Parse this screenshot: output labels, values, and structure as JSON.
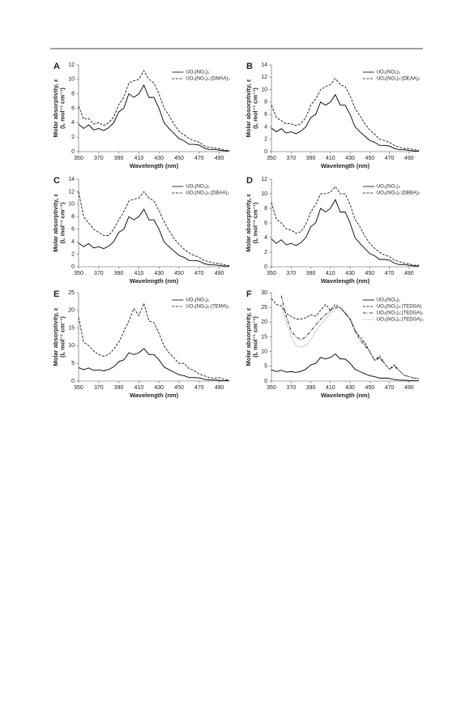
{
  "chart_data": [
    {
      "type": "line",
      "panel": "A",
      "xlabel": "Wavelength (nm)",
      "ylabel": [
        "Molar absorptivity, ε",
        "(L mol⁻¹ cm⁻¹)"
      ],
      "x": [
        350,
        355,
        360,
        365,
        370,
        375,
        380,
        385,
        390,
        395,
        400,
        405,
        410,
        415,
        420,
        425,
        430,
        435,
        440,
        445,
        450,
        455,
        460,
        465,
        470,
        475,
        480,
        485,
        490,
        495,
        500
      ],
      "xlim": [
        350,
        500
      ],
      "xticks": [
        350,
        370,
        390,
        410,
        430,
        450,
        470,
        490
      ],
      "ylim": [
        0,
        12
      ],
      "yticks": [
        0,
        2,
        4,
        6,
        8,
        10,
        12
      ],
      "grid": false,
      "legend": "upper right",
      "series": [
        {
          "name": "UO₂(NO₃)₂",
          "color": "#000000",
          "linestyle": "solid",
          "values": [
            3.8,
            3.2,
            3.7,
            3.0,
            3.2,
            2.9,
            3.3,
            4.0,
            5.5,
            6.0,
            8.0,
            7.5,
            8.0,
            9.2,
            7.5,
            7.5,
            6.0,
            4.0,
            3.2,
            2.5,
            1.8,
            1.5,
            1.0,
            1.0,
            0.9,
            0.5,
            0.3,
            0.3,
            0.2,
            0.1,
            0.1
          ]
        },
        {
          "name": "UO₂(NO₃)₂:(DMAA)₂",
          "color": "#000000",
          "linestyle": "dashed",
          "values": [
            6.3,
            4.5,
            4.6,
            3.8,
            4.0,
            3.6,
            4.0,
            4.8,
            6.5,
            7.5,
            9.5,
            9.8,
            10.0,
            11.2,
            10.0,
            9.5,
            8.0,
            6.0,
            5.0,
            3.8,
            2.8,
            2.3,
            1.8,
            1.5,
            1.3,
            0.8,
            0.6,
            0.5,
            0.4,
            0.2,
            0.2
          ]
        }
      ]
    },
    {
      "type": "line",
      "panel": "B",
      "xlabel": "Wavelength (nm)",
      "ylabel": [
        "Molar absorptivity, ε",
        "(L mol⁻¹ cm⁻¹)"
      ],
      "x": [
        350,
        355,
        360,
        365,
        370,
        375,
        380,
        385,
        390,
        395,
        400,
        405,
        410,
        415,
        420,
        425,
        430,
        435,
        440,
        445,
        450,
        455,
        460,
        465,
        470,
        475,
        480,
        485,
        490,
        495,
        500
      ],
      "xlim": [
        350,
        500
      ],
      "xticks": [
        350,
        370,
        390,
        410,
        430,
        450,
        470,
        490
      ],
      "ylim": [
        0,
        14
      ],
      "yticks": [
        0,
        2,
        4,
        6,
        8,
        10,
        12,
        14
      ],
      "grid": false,
      "legend": "upper right",
      "series": [
        {
          "name": "UO₂(NO₃)₂",
          "color": "#000000",
          "linestyle": "solid",
          "values": [
            3.8,
            3.2,
            3.7,
            3.0,
            3.2,
            2.9,
            3.3,
            4.0,
            5.5,
            6.0,
            8.0,
            7.5,
            8.0,
            9.2,
            7.5,
            7.5,
            6.0,
            4.0,
            3.2,
            2.5,
            1.8,
            1.5,
            1.0,
            1.0,
            0.9,
            0.5,
            0.3,
            0.3,
            0.2,
            0.1,
            0.1
          ]
        },
        {
          "name": "UO₂(NO₃)₂:(DEAA)₂",
          "color": "#000000",
          "linestyle": "dashed",
          "values": [
            7.5,
            5.5,
            5.0,
            4.5,
            4.5,
            4.2,
            4.5,
            5.5,
            7.5,
            8.5,
            10.0,
            10.5,
            10.8,
            11.8,
            10.8,
            10.5,
            9.0,
            7.0,
            5.8,
            4.5,
            3.5,
            2.8,
            2.0,
            1.8,
            1.5,
            1.0,
            0.7,
            0.5,
            0.5,
            0.3,
            0.2
          ]
        }
      ]
    },
    {
      "type": "line",
      "panel": "C",
      "xlabel": "Wavelength (nm)",
      "ylabel": [
        "Molar absorptivity, ε",
        "(L mol⁻¹ cm⁻¹)"
      ],
      "x": [
        350,
        355,
        360,
        365,
        370,
        375,
        380,
        385,
        390,
        395,
        400,
        405,
        410,
        415,
        420,
        425,
        430,
        435,
        440,
        445,
        450,
        455,
        460,
        465,
        470,
        475,
        480,
        485,
        490,
        495,
        500
      ],
      "xlim": [
        350,
        500
      ],
      "xticks": [
        350,
        370,
        390,
        410,
        430,
        450,
        470,
        490
      ],
      "ylim": [
        0,
        14
      ],
      "yticks": [
        0,
        2,
        4,
        6,
        8,
        10,
        12,
        14
      ],
      "grid": false,
      "legend": "upper right",
      "series": [
        {
          "name": "UO₂(NO₃)₂",
          "color": "#000000",
          "linestyle": "solid",
          "values": [
            3.8,
            3.2,
            3.7,
            3.0,
            3.2,
            2.9,
            3.3,
            4.0,
            5.5,
            6.0,
            8.0,
            7.5,
            8.0,
            9.2,
            7.5,
            7.5,
            6.0,
            4.0,
            3.2,
            2.5,
            1.8,
            1.5,
            1.0,
            1.0,
            0.9,
            0.5,
            0.3,
            0.3,
            0.2,
            0.1,
            0.1
          ]
        },
        {
          "name": "UO₂(NO₃)₂:(DBAA)₂",
          "color": "#000000",
          "linestyle": "dashed",
          "values": [
            12.0,
            8.0,
            7.0,
            6.0,
            5.5,
            5.0,
            5.0,
            6.0,
            7.5,
            8.8,
            10.5,
            10.8,
            11.0,
            12.0,
            11.0,
            10.5,
            9.0,
            7.2,
            5.8,
            4.5,
            3.6,
            2.8,
            2.2,
            1.8,
            1.5,
            1.0,
            0.8,
            0.6,
            0.5,
            0.3,
            0.2
          ]
        }
      ]
    },
    {
      "type": "line",
      "panel": "D",
      "xlabel": "Wavelength (nm)",
      "ylabel": [
        "Molar absorptivity, ε",
        "(L mol⁻¹ cm⁻¹)"
      ],
      "x": [
        350,
        355,
        360,
        365,
        370,
        375,
        380,
        385,
        390,
        395,
        400,
        405,
        410,
        415,
        420,
        425,
        430,
        435,
        440,
        445,
        450,
        455,
        460,
        465,
        470,
        475,
        480,
        485,
        490,
        495,
        500
      ],
      "xlim": [
        350,
        500
      ],
      "xticks": [
        350,
        370,
        390,
        410,
        430,
        450,
        470,
        490
      ],
      "ylim": [
        0,
        12
      ],
      "yticks": [
        0,
        2,
        4,
        6,
        8,
        10,
        12
      ],
      "grid": false,
      "legend": "upper right",
      "series": [
        {
          "name": "UO₂(NO₃)₂",
          "color": "#000000",
          "linestyle": "solid",
          "values": [
            3.8,
            3.2,
            3.7,
            3.0,
            3.2,
            2.9,
            3.3,
            4.0,
            5.5,
            6.0,
            8.0,
            7.5,
            8.0,
            9.2,
            7.5,
            7.5,
            6.0,
            4.0,
            3.2,
            2.5,
            1.8,
            1.5,
            1.0,
            1.0,
            0.9,
            0.5,
            0.3,
            0.3,
            0.2,
            0.1,
            0.1
          ]
        },
        {
          "name": "UO₂(NO₃)₂:(DBBA)₂",
          "color": "#000000",
          "linestyle": "dashed",
          "values": [
            8.8,
            6.5,
            6.0,
            5.2,
            5.0,
            4.6,
            4.8,
            5.8,
            7.5,
            8.5,
            10.0,
            10.0,
            10.2,
            11.0,
            10.0,
            10.0,
            8.5,
            6.5,
            5.5,
            4.2,
            3.2,
            2.5,
            2.0,
            1.6,
            1.4,
            0.9,
            0.7,
            0.5,
            0.4,
            0.2,
            0.2
          ]
        }
      ]
    },
    {
      "type": "line",
      "panel": "E",
      "xlabel": "Wavelength (nm)",
      "ylabel": [
        "Molar absorptivity, ε",
        "(L mol⁻¹ cm⁻¹)"
      ],
      "x": [
        350,
        355,
        360,
        365,
        370,
        375,
        380,
        385,
        390,
        395,
        400,
        405,
        410,
        415,
        420,
        425,
        430,
        435,
        440,
        445,
        450,
        455,
        460,
        465,
        470,
        475,
        480,
        485,
        490,
        495,
        500
      ],
      "xlim": [
        350,
        500
      ],
      "xticks": [
        350,
        370,
        390,
        410,
        430,
        450,
        470,
        490
      ],
      "ylim": [
        0,
        25
      ],
      "yticks": [
        0,
        5,
        10,
        15,
        20,
        25
      ],
      "grid": false,
      "legend": "upper right",
      "series": [
        {
          "name": "UO₂(NO₃)₂",
          "color": "#000000",
          "linestyle": "solid",
          "values": [
            3.8,
            3.2,
            3.7,
            3.0,
            3.2,
            2.9,
            3.3,
            4.0,
            5.5,
            6.0,
            8.0,
            7.5,
            8.0,
            9.2,
            7.5,
            7.5,
            6.0,
            4.0,
            3.2,
            2.5,
            1.8,
            1.5,
            1.0,
            1.0,
            0.9,
            0.5,
            0.3,
            0.3,
            0.2,
            0.1,
            0.1
          ]
        },
        {
          "name": "UO₂(NO₃)₂:(TEMA)₂",
          "color": "#000000",
          "linestyle": "dashed",
          "values": [
            18,
            11,
            10,
            8.5,
            7.5,
            7.0,
            7.5,
            9.0,
            11.0,
            14.0,
            17.0,
            20.5,
            18.5,
            22.0,
            17.0,
            16.5,
            13.5,
            10.0,
            8.0,
            6.5,
            5.0,
            5.0,
            3.5,
            3.0,
            2.0,
            1.5,
            1.0,
            0.8,
            1.0,
            0.5,
            0.3
          ]
        }
      ]
    },
    {
      "type": "line",
      "panel": "F",
      "xlabel": "Wavelength (nm)",
      "ylabel": [
        "Molar absorptivity, ε",
        "(L mol⁻¹ cm⁻¹)"
      ],
      "x": [
        350,
        355,
        360,
        365,
        370,
        375,
        380,
        385,
        390,
        395,
        400,
        405,
        410,
        415,
        420,
        425,
        430,
        435,
        440,
        445,
        450,
        455,
        460,
        465,
        470,
        475,
        480,
        485,
        490,
        495,
        500
      ],
      "xlim": [
        350,
        500
      ],
      "xticks": [
        350,
        370,
        390,
        410,
        430,
        450,
        470,
        490
      ],
      "ylim": [
        0,
        30
      ],
      "yticks": [
        0,
        5,
        10,
        15,
        20,
        25,
        30
      ],
      "grid": false,
      "legend": "upper right",
      "series": [
        {
          "name": "UO₂(NO₃)₂",
          "color": "#000000",
          "linestyle": "solid",
          "values": [
            3.8,
            3.2,
            3.7,
            3.0,
            3.2,
            2.9,
            3.3,
            4.0,
            5.5,
            6.0,
            8.0,
            7.5,
            8.0,
            9.2,
            7.5,
            7.5,
            6.0,
            4.0,
            3.2,
            2.5,
            1.8,
            1.5,
            1.0,
            1.0,
            0.9,
            0.5,
            0.3,
            0.3,
            0.2,
            0.1,
            0.1
          ]
        },
        {
          "name": "UO₂(NO₃)₂:(TEDGA)",
          "color": "#000000",
          "linestyle": "dashed",
          "values": [
            28,
            26,
            25.5,
            23,
            22,
            21,
            21,
            21.5,
            22.5,
            22,
            24,
            26,
            24,
            26,
            25,
            23,
            21,
            17,
            15,
            13,
            10,
            7,
            8.5,
            6,
            4,
            5.5,
            3.5,
            2,
            1.5,
            1.0,
            0.8
          ]
        },
        {
          "name": "UO₂(NO₃)₂:(TEDGA)₂",
          "color": "#000000",
          "linestyle": "dashdot",
          "values": [
            null,
            null,
            29,
            22,
            17,
            15,
            14,
            15,
            17,
            19,
            21,
            22.5,
            24,
            25,
            25,
            23,
            21,
            17,
            14,
            12,
            10,
            7,
            8,
            6,
            4,
            5,
            3.5,
            2,
            1.5,
            1,
            0.8
          ]
        },
        {
          "name": "UO₂(NO₃)₂:(TEDGA)₃",
          "color": "#888888",
          "linestyle": "dotted",
          "values": [
            null,
            null,
            26,
            20,
            15,
            12,
            11.5,
            12,
            14,
            17,
            19,
            21,
            23,
            24.5,
            25,
            23.5,
            21.5,
            18,
            15,
            12.5,
            10,
            7,
            7.5,
            6,
            4,
            5,
            3.5,
            2,
            1.5,
            1,
            0.8
          ]
        }
      ]
    }
  ]
}
